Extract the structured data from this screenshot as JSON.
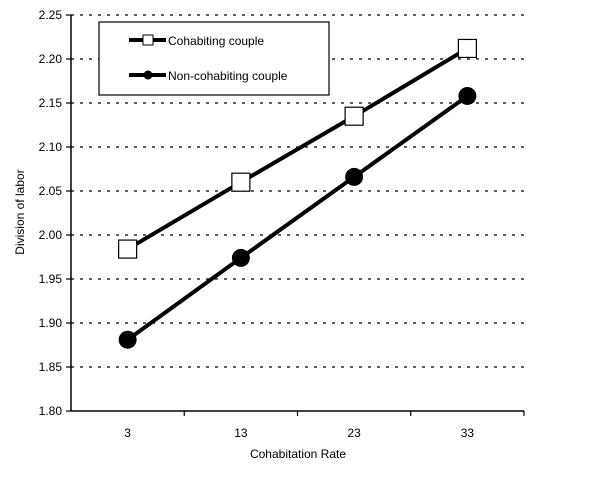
{
  "chart_data": {
    "type": "line",
    "title": "",
    "xlabel": "Cohabitation Rate",
    "ylabel": "Division of labor",
    "categories": [
      "3",
      "13",
      "23",
      "33"
    ],
    "ylim": [
      1.8,
      2.25
    ],
    "yticks": [
      "1.80",
      "1.85",
      "1.90",
      "1.95",
      "2.00",
      "2.05",
      "2.10",
      "2.15",
      "2.20",
      "2.25"
    ],
    "grid": "horizontal dotted",
    "legend_position": "top-left inside",
    "series": [
      {
        "name": "Cohabiting couple",
        "marker": "open-square",
        "values": [
          1.984,
          2.06,
          2.135,
          2.212
        ]
      },
      {
        "name": "Non-cohabiting couple",
        "marker": "filled-circle",
        "values": [
          1.881,
          1.974,
          2.066,
          2.158
        ]
      }
    ]
  },
  "colors": {
    "line": "#000000",
    "background": "#ffffff"
  }
}
